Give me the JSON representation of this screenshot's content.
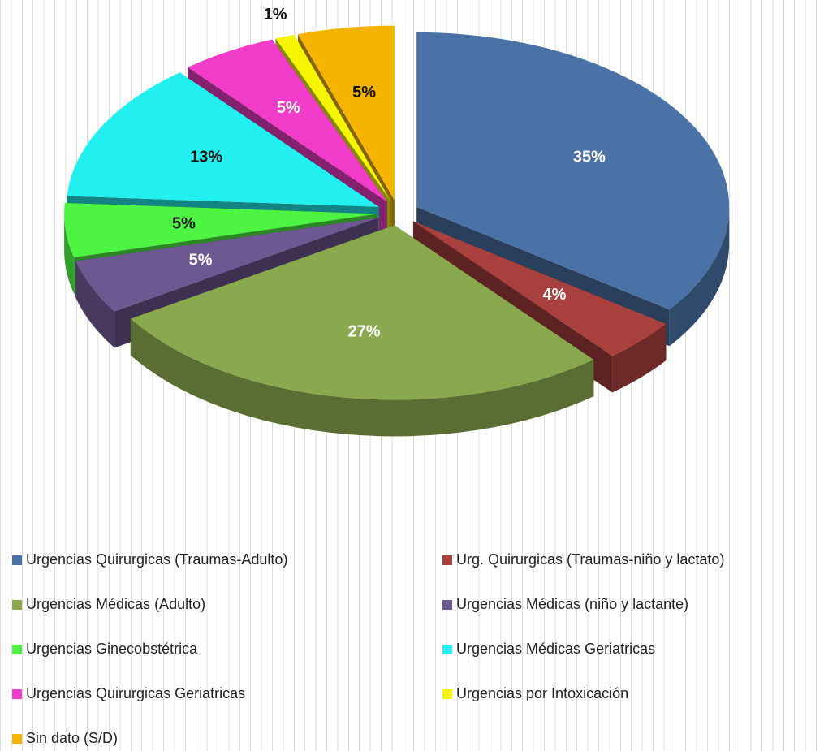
{
  "chart_data": {
    "type": "pie3d",
    "categories": [
      "Urgencias Quirurgicas (Traumas-Adulto)",
      "Urg. Quirurgicas (Traumas-niño y lactato)",
      "Urgencias Médicas (Adulto)",
      "Urgencias Médicas (niño y lactante)",
      "Urgencias Ginecobstétrica",
      "Urgencias Médicas Geriatricas",
      "Urgencias Quirurgicas Geriatricas",
      "Urgencias por Intoxicación",
      "Sin dato  (S/D)"
    ],
    "values": [
      35,
      4,
      27,
      5,
      5,
      13,
      5,
      1,
      5
    ],
    "value_labels": [
      "35%",
      "4%",
      "27%",
      "5%",
      "5%",
      "13%",
      "5%",
      "1%",
      "5%"
    ],
    "colors": [
      "#4a72a6",
      "#a8403d",
      "#8aa84d",
      "#6e5891",
      "#4df542",
      "#22f0f0",
      "#f03cc8",
      "#f5f500",
      "#f5b400"
    ],
    "legend": "bottom"
  }
}
